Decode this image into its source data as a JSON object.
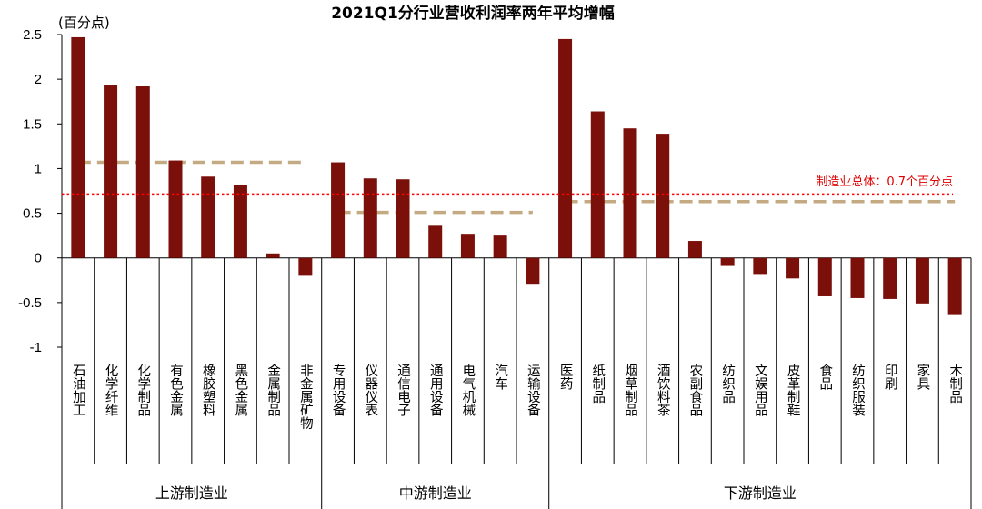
{
  "chart_data": {
    "type": "bar",
    "title": "2021Q1分行业营收利润率两年平均增幅",
    "unit_label": "(百分点)",
    "y_ticks": [
      "-1",
      "-0.5",
      "0",
      "0.5",
      "1",
      "1.5",
      "2",
      "2.5"
    ],
    "ylim": [
      -1,
      2.5
    ],
    "grid": false,
    "bar_color": "#7b0f0a",
    "categories": [
      "石油加工",
      "化学纤维",
      "化学制品",
      "有色金属",
      "橡胶塑料",
      "黑色金属",
      "金属制品",
      "非金属矿物",
      "专用设备",
      "仪器仪表",
      "通信电子",
      "通用设备",
      "电气机械",
      "汽车",
      "运输设备",
      "医药",
      "纸制品",
      "烟草制品",
      "酒饮料茶",
      "农副食品",
      "纺织品",
      "文娱用品",
      "皮革制鞋",
      "食品",
      "纺织服装",
      "印刷",
      "家具",
      "木制品"
    ],
    "values": [
      2.47,
      1.93,
      1.92,
      1.09,
      0.91,
      0.82,
      0.05,
      -0.2,
      1.07,
      0.89,
      0.88,
      0.36,
      0.27,
      0.25,
      -0.3,
      2.45,
      1.64,
      1.45,
      1.39,
      0.19,
      -0.09,
      -0.19,
      -0.23,
      -0.43,
      -0.45,
      -0.46,
      -0.51,
      -0.64
    ],
    "groups": [
      {
        "name": "上游制造业",
        "start": 0,
        "end": 7,
        "average": 1.07
      },
      {
        "name": "中游制造业",
        "start": 8,
        "end": 14,
        "average": 0.51
      },
      {
        "name": "下游制造业",
        "start": 15,
        "end": 27,
        "average": 0.63
      }
    ],
    "reference_line": {
      "label": "制造业总体：0.7个百分点",
      "value": 0.71,
      "color": "#ff0000"
    },
    "group_average_color": "#c4aa83"
  }
}
